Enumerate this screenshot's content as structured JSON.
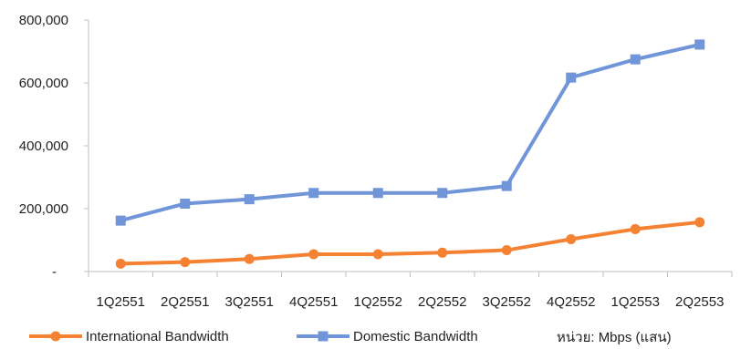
{
  "chart_data": {
    "type": "line",
    "title": "",
    "xlabel": "",
    "ylabel": "",
    "categories": [
      "1Q2551",
      "2Q2551",
      "3Q2551",
      "4Q2551",
      "1Q2552",
      "2Q2552",
      "3Q2552",
      "4Q2552",
      "1Q2553",
      "2Q2553"
    ],
    "ylim": [
      0,
      800000
    ],
    "y_ticks": [
      0,
      200000,
      400000,
      600000,
      800000
    ],
    "y_tick_labels": [
      "-",
      "200,000",
      "400,000",
      "600,000",
      "800,000"
    ],
    "grid": false,
    "legend_position": "bottom",
    "series": [
      {
        "name": "International Bandwidth",
        "color": "#F58232",
        "marker": "circle",
        "values": [
          25000,
          30000,
          40000,
          55000,
          55000,
          60000,
          68000,
          103000,
          135000,
          157000
        ]
      },
      {
        "name": "Domestic Bandwidth",
        "color": "#7095D9",
        "marker": "square",
        "values": [
          162000,
          216000,
          230000,
          250000,
          250000,
          250000,
          272000,
          617000,
          675000,
          722000
        ]
      }
    ],
    "unit_note": "หน่วย: Mbps (แสน)"
  }
}
